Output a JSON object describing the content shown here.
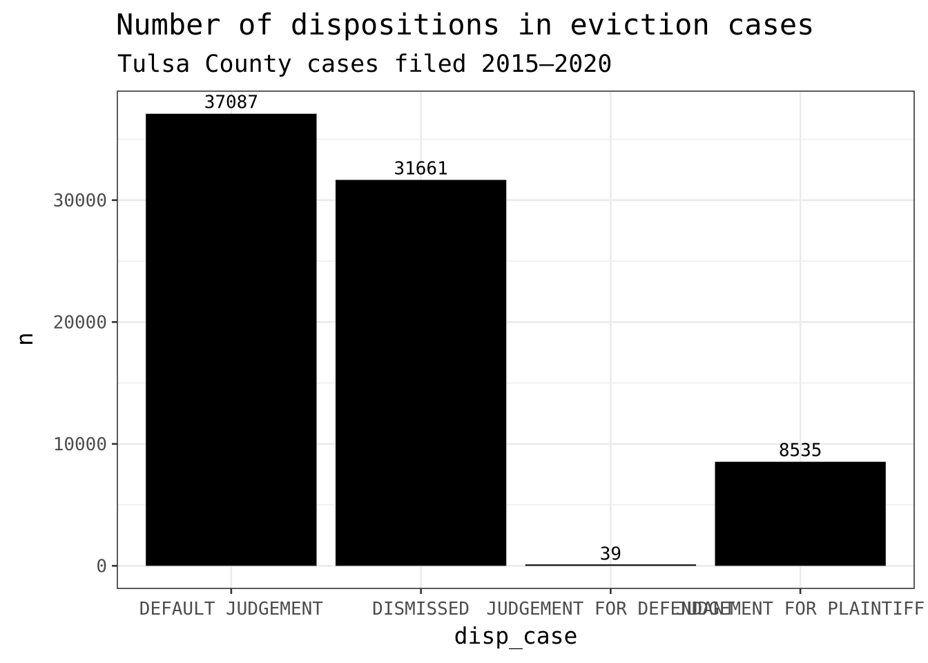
{
  "chart_data": {
    "type": "bar",
    "title": "Number of dispositions in eviction cases",
    "subtitle": "Tulsa County cases filed 2015–2020",
    "xlabel": "disp_case",
    "ylabel": "n",
    "categories": [
      "DEFAULT JUDGEMENT",
      "DISMISSED",
      "JUDGEMENT FOR DEFENDANT",
      "JUDGEMENT FOR PLAINTIFF"
    ],
    "values": [
      37087,
      31661,
      39,
      8535
    ],
    "data_labels": [
      "37087",
      "31661",
      "39",
      "8535"
    ],
    "y_ticks": [
      0,
      10000,
      20000,
      30000
    ],
    "ylim": [
      -1854,
      38941
    ],
    "grid": true,
    "bar_color": "#000000",
    "panel_border_color": "#333333",
    "grid_color": "#ebebeb"
  }
}
